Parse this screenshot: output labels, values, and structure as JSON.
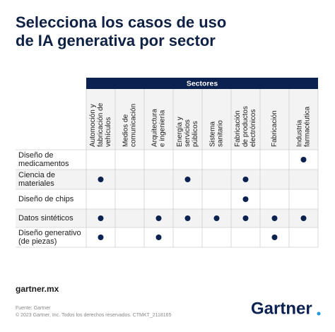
{
  "header": {
    "title_lines": [
      "Selecciona los casos de uso",
      "de IA generativa por sector"
    ]
  },
  "table": {
    "group_header": "Sectores",
    "columns": [
      [
        "Automoción y",
        "fabricación de",
        "vehículos"
      ],
      [
        "Medios de",
        "comunicación"
      ],
      [
        "Arquitectura",
        "e ingeniería"
      ],
      [
        "Energía y",
        "servicios",
        "públicos"
      ],
      [
        "Sistema",
        "sanitario"
      ],
      [
        "Fabricación",
        "de productos",
        "electrónicos"
      ],
      [
        "Fabricación"
      ],
      [
        "Industria",
        "farmacéutica"
      ]
    ],
    "rows": [
      {
        "label": [
          "Diseño de",
          "medicamentos"
        ],
        "cells": [
          0,
          0,
          0,
          0,
          0,
          0,
          0,
          1
        ]
      },
      {
        "label": [
          "Ciencia de",
          "materiales"
        ],
        "cells": [
          1,
          0,
          0,
          1,
          0,
          1,
          0,
          0
        ]
      },
      {
        "label": [
          "Diseño de chips"
        ],
        "cells": [
          0,
          0,
          0,
          0,
          0,
          1,
          0,
          0
        ]
      },
      {
        "label": [
          "Datos sintéticos"
        ],
        "cells": [
          1,
          0,
          1,
          1,
          1,
          1,
          1,
          1
        ]
      },
      {
        "label": [
          "Diseño generativo",
          "(de piezas)"
        ],
        "cells": [
          1,
          0,
          1,
          0,
          0,
          0,
          1,
          0
        ]
      }
    ]
  },
  "footer": {
    "website": "gartner.mx",
    "source": "Fuente: Gartner",
    "copyright": "© 2023 Gartner, Inc. Todos los derechos reservados. CTMKT_2118165",
    "logo": "Gartner"
  }
}
